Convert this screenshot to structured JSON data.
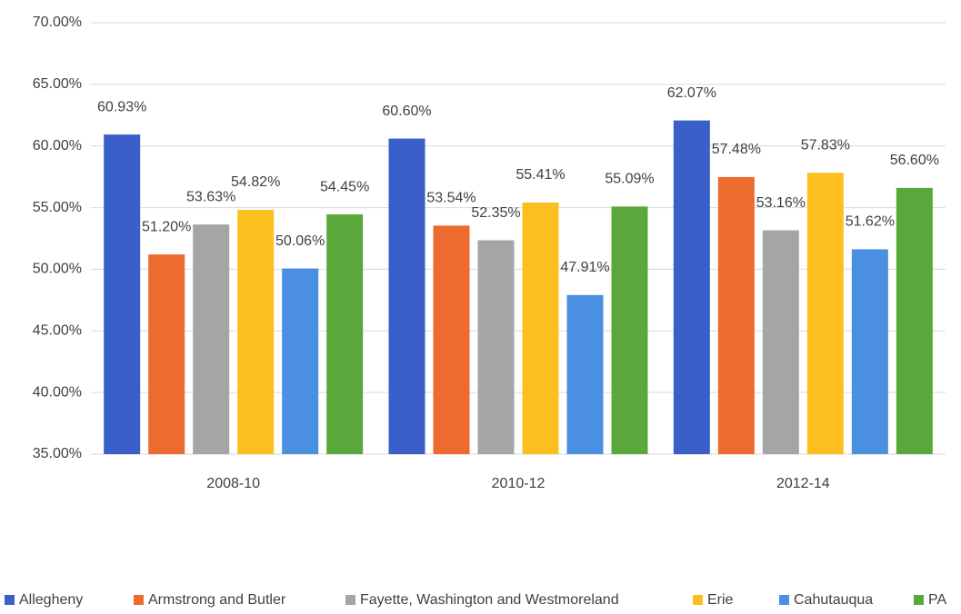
{
  "chart_data": {
    "type": "bar",
    "categories": [
      "2008-10",
      "2010-12",
      "2012-14"
    ],
    "series": [
      {
        "name": "Allegheny",
        "color": "#3a5fc9",
        "values": [
          60.93,
          60.6,
          62.07
        ],
        "value_labels": [
          "60.93%",
          "60.60%",
          "62.07%"
        ]
      },
      {
        "name": "Armstrong and Butler",
        "color": "#ed6b2e",
        "values": [
          51.2,
          53.54,
          57.48
        ],
        "value_labels": [
          "51.20%",
          "53.54%",
          "57.48%"
        ]
      },
      {
        "name": "Fayette, Washington and Westmoreland",
        "color": "#a5a5a5",
        "values": [
          53.63,
          52.35,
          53.16
        ],
        "value_labels": [
          "53.63%",
          "52.35%",
          "53.16%"
        ]
      },
      {
        "name": "Erie",
        "color": "#fbbf1f",
        "values": [
          54.82,
          55.41,
          57.83
        ],
        "value_labels": [
          "54.82%",
          "55.41%",
          "57.83%"
        ]
      },
      {
        "name": "Cahutauqua",
        "color": "#4a8fe0",
        "values": [
          50.06,
          47.91,
          51.62
        ],
        "value_labels": [
          "50.06%",
          "47.91%",
          "51.62%"
        ]
      },
      {
        "name": "PA",
        "color": "#5aa83c",
        "values": [
          54.45,
          55.09,
          56.6
        ],
        "value_labels": [
          "54.45%",
          "55.09%",
          "56.60%"
        ]
      }
    ],
    "ylim": [
      35,
      70
    ],
    "yticks": [
      {
        "value": 35,
        "label": "35.00%"
      },
      {
        "value": 40,
        "label": "40.00%"
      },
      {
        "value": 45,
        "label": "45.00%"
      },
      {
        "value": 50,
        "label": "50.00%"
      },
      {
        "value": 55,
        "label": "55.00%"
      },
      {
        "value": 60,
        "label": "60.00%"
      },
      {
        "value": 65,
        "label": "65.00%"
      },
      {
        "value": 70,
        "label": "70.00%"
      }
    ],
    "grid": true,
    "legend": "bottom"
  }
}
